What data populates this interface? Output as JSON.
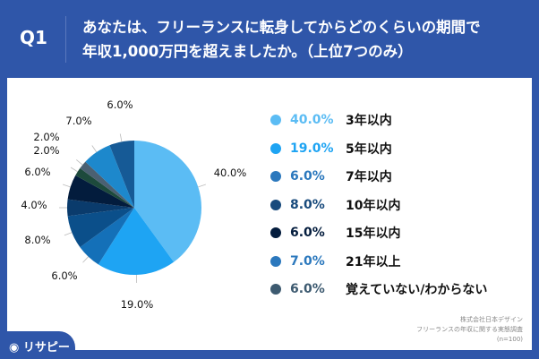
{
  "header": {
    "q": "Q1",
    "title_lines": [
      "あなたは、フリーランスに転身してからどのくらいの期間で",
      "年収1,000万円を超えましたか。（上位7つのみ）"
    ]
  },
  "chart_data": {
    "type": "pie",
    "title": "あなたは、フリーランスに転身してからどのくらいの期間で年収1,000万円を超えましたか。（上位7つのみ）",
    "slices": [
      {
        "label": "3年以内",
        "value": 40.0,
        "color": "#5bbcf4"
      },
      {
        "label": "5年以内",
        "value": 19.0,
        "color": "#1ea4f3"
      },
      {
        "label": "7年以内",
        "value": 6.0,
        "color": "#1470b8"
      },
      {
        "label": "10年以内",
        "value": 8.0,
        "color": "#0b4f8a"
      },
      {
        "label": "",
        "value": 4.0,
        "color": "#0a3b6c"
      },
      {
        "label": "15年以内",
        "value": 6.0,
        "color": "#031c3d"
      },
      {
        "label": "",
        "value": 2.0,
        "color": "#1d4a3c"
      },
      {
        "label": "",
        "value": 2.0,
        "color": "#4b6072"
      },
      {
        "label": "21年以上",
        "value": 7.0,
        "color": "#1d88cc"
      },
      {
        "label": "覚えていない/わからない",
        "value": 6.0,
        "color": "#165a96"
      }
    ],
    "data_labels": [
      "40.0%",
      "19.0%",
      "6.0%",
      "8.0%",
      "4.0%",
      "6.0%",
      "2.0%",
      "2.0%",
      "7.0%",
      "6.0%"
    ],
    "legend": [
      {
        "pct": "40.0%",
        "label": "3年以内",
        "color": "#5bbcf4"
      },
      {
        "pct": "19.0%",
        "label": "5年以内",
        "color": "#1ea4f3"
      },
      {
        "pct": "6.0%",
        "label": "7年以内",
        "color": "#2b78bd"
      },
      {
        "pct": "8.0%",
        "label": "10年以内",
        "color": "#184a7c"
      },
      {
        "pct": "6.0%",
        "label": "15年以内",
        "color": "#031c3d"
      },
      {
        "pct": "7.0%",
        "label": "21年以上",
        "color": "#2b78bd"
      },
      {
        "pct": "6.0%",
        "label": "覚えていない/わからない",
        "color": "#3d5a70"
      }
    ],
    "legend_position": "right"
  },
  "source": {
    "company": "株式会社日本デザイン",
    "survey": "フリーランスの年収に関する実態調査",
    "n": "(n=100)"
  },
  "logo": "リサピー"
}
